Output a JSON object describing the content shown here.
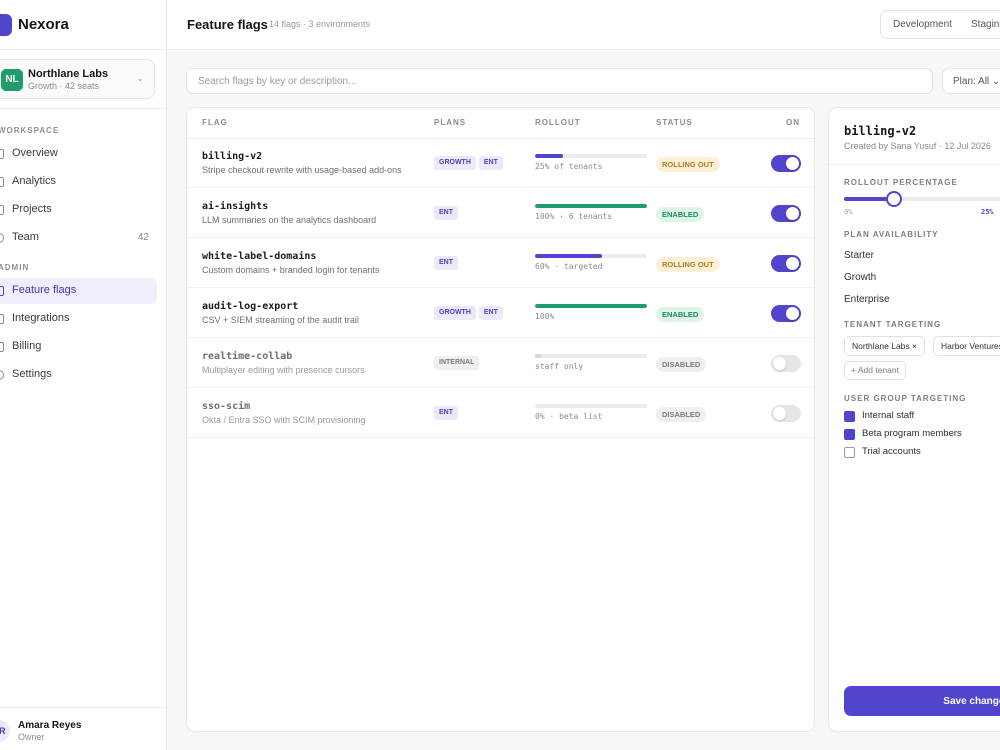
{
  "app": {
    "name": "Nexora"
  },
  "org": {
    "initials": "NL",
    "name": "Northlane Labs",
    "sub": "Growth · 42 seats"
  },
  "sidebar": {
    "workspace_label": "WORKSPACE",
    "admin_label": "ADMIN",
    "items": [
      {
        "label": "Overview"
      },
      {
        "label": "Analytics"
      },
      {
        "label": "Projects"
      },
      {
        "label": "Team",
        "count": "42"
      },
      {
        "label": "Feature flags"
      },
      {
        "label": "Integrations"
      },
      {
        "label": "Billing"
      },
      {
        "label": "Settings"
      }
    ]
  },
  "user": {
    "initials": "AR",
    "name": "Amara Reyes",
    "role": "Owner"
  },
  "header": {
    "title": "Feature flags",
    "subtitle": "14 flags · 3 environments",
    "environments": [
      "Development",
      "Staging"
    ]
  },
  "search": {
    "placeholder": "Search flags by key or description..."
  },
  "plan_filter": {
    "label": "Plan: All ⌄"
  },
  "table": {
    "columns": [
      "FLAG",
      "PLANS",
      "ROLLOUT",
      "STATUS",
      "ON"
    ],
    "rows": [
      {
        "key": "billing-v2",
        "desc": "Stripe checkout rewrite with usage-based add-ons",
        "plans": [
          "GROWTH",
          "ENT"
        ],
        "rollout_pct": 0.25,
        "rollout_text": "25% of tenants",
        "status": "ROLLING OUT",
        "on": true
      },
      {
        "key": "ai-insights",
        "desc": "LLM summaries on the analytics dashboard",
        "plans": [
          "ENT"
        ],
        "rollout_pct": 1.0,
        "rollout_text": "100% · 6 tenants",
        "status": "ENABLED",
        "on": true
      },
      {
        "key": "white-label-domains",
        "desc": "Custom domains + branded login for tenants",
        "plans": [
          "ENT"
        ],
        "rollout_pct": 0.6,
        "rollout_text": "60% · targeted",
        "status": "ROLLING OUT",
        "on": true
      },
      {
        "key": "audit-log-export",
        "desc": "CSV + SIEM streaming of the audit trail",
        "plans": [
          "GROWTH",
          "ENT"
        ],
        "rollout_pct": 1.0,
        "rollout_text": "100%",
        "status": "ENABLED",
        "on": true
      },
      {
        "key": "realtime-collab",
        "desc": "Multiplayer editing with presence cursors",
        "plans": [
          "INTERNAL"
        ],
        "rollout_pct": 0.05,
        "rollout_text": "staff only",
        "status": "DISABLED",
        "on": false
      },
      {
        "key": "sso-scim",
        "desc": "Okta / Entra SSO with SCIM provisioning",
        "plans": [
          "ENT"
        ],
        "rollout_pct": 0,
        "rollout_text": "0% · beta list",
        "status": "DISABLED",
        "on": false
      }
    ]
  },
  "status_colors": {
    "ROLLING OUT": {
      "bg": "#fdf0d8",
      "fg": "#b7791f"
    },
    "ENABLED": {
      "bg": "#ddf5e8",
      "fg": "#1f8a55"
    },
    "DISABLED": {
      "bg": "#efefed",
      "fg": "#7b7b84"
    }
  },
  "bar_colors": {
    "ROLLING OUT": "#5145cd",
    "ENABLED": "#1f9d6a",
    "DISABLED": "#d6d6d3"
  },
  "panel": {
    "key": "billing-v2",
    "meta": "Created by Sana Yusuf · 12 Jul 2026",
    "rollout_label": "ROLLOUT PERCENTAGE",
    "rollout_min": "0%",
    "rollout_value": "25%",
    "rollout_fraction": 0.25,
    "plan_label": "PLAN AVAILABILITY",
    "plans": [
      "Starter",
      "Growth",
      "Enterprise"
    ],
    "tenant_label": "TENANT TARGETING",
    "tenants": [
      "Northlane Labs ×",
      "Harbor Ventures"
    ],
    "add_tenant": "+ Add tenant",
    "group_label": "USER GROUP TARGETING",
    "groups": [
      {
        "label": "Internal staff",
        "checked": true
      },
      {
        "label": "Beta program members",
        "checked": true
      },
      {
        "label": "Trial accounts",
        "checked": false
      }
    ],
    "save_label": "Save changes"
  },
  "colors": {
    "accent": "#5145cd"
  }
}
